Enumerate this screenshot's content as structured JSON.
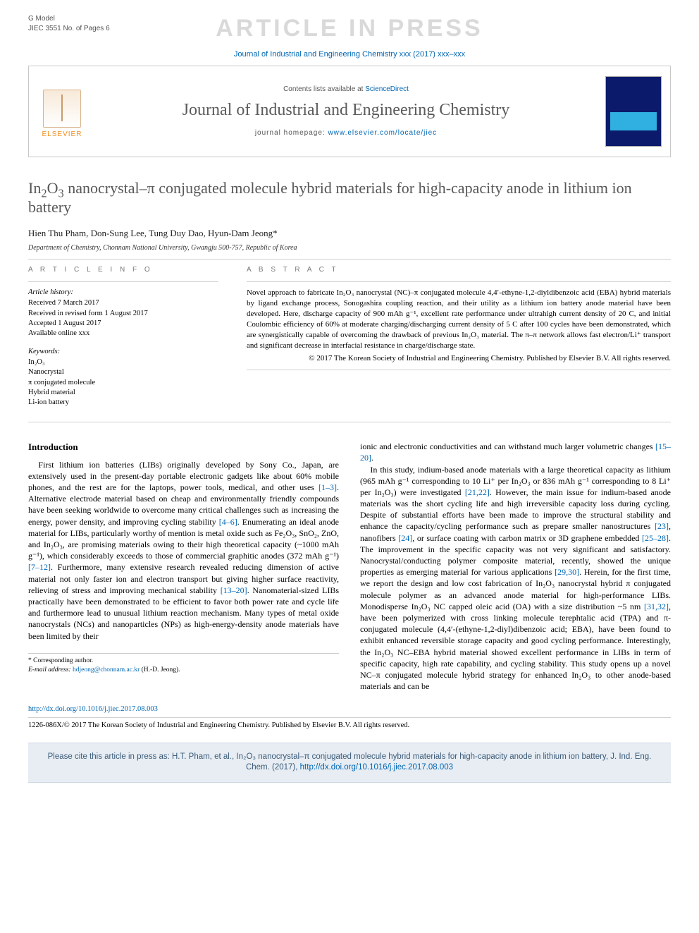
{
  "gmodel": {
    "l1": "G Model",
    "l2": "JIEC 3551 No. of Pages 6"
  },
  "watermark": "ARTICLE IN PRESS",
  "topline": {
    "text": "Journal of Industrial and Engineering Chemistry xxx (2017) xxx–xxx"
  },
  "header": {
    "contents_line_pre": "Contents lists available at ",
    "contents_link": "ScienceDirect",
    "journal_name": "Journal of Industrial and Engineering Chemistry",
    "homepage_pre": "journal homepage: ",
    "homepage_link": "www.elsevier.com/locate/jiec",
    "elsevier_label": "ELSEVIER"
  },
  "title_html": "In<sub>2</sub>O<sub>3</sub> nanocrystal–π conjugated molecule hybrid materials for high-capacity anode in lithium ion battery",
  "authors": "Hien Thu Pham, Don-Sung Lee, Tung Duy Dao, Hyun-Dam Jeong*",
  "affiliation": "Department of Chemistry, Chonnam National University, Gwangju 500-757, Republic of Korea",
  "article_info": {
    "heading": "A R T I C L E  I N F O",
    "history_label": "Article history:",
    "history": [
      "Received 7 March 2017",
      "Received in revised form 1 August 2017",
      "Accepted 1 August 2017",
      "Available online xxx"
    ],
    "keywords_label": "Keywords:",
    "keywords": [
      "In₂O₃",
      "Nanocrystal",
      "π conjugated molecule",
      "Hybrid material",
      "Li-ion battery"
    ]
  },
  "abstract": {
    "heading": "A B S T R A C T",
    "text": "Novel approach to fabricate In₂O₃ nanocrystal (NC)–π conjugated molecule 4,4′-ethyne-1,2-diyldibenzoic acid (EBA) hybrid materials by ligand exchange process, Sonogashira coupling reaction, and their utility as a lithium ion battery anode material have been developed. Here, discharge capacity of 900 mAh g⁻¹, excellent rate performance under ultrahigh current density of 20 C, and initial Coulombic efficiency of 60% at moderate charging/discharging current density of 5 C after 100 cycles have been demonstrated, which are synergistically capable of overcoming the drawback of previous In₂O₃ material. The π–π network allows fast electron/Li⁺ transport and significant decrease in interfacial resistance in charge/discharge state.",
    "copyright": "© 2017 The Korean Society of Industrial and Engineering Chemistry. Published by Elsevier B.V. All rights reserved."
  },
  "body": {
    "left": {
      "heading": "Introduction",
      "p1_a": "First lithium ion batteries (LIBs) originally developed by Sony Co., Japan, are extensively used in the present-day portable electronic gadgets like about 60% mobile phones, and the rest are for the laptops, power tools, medical, and other uses ",
      "r1": "[1–3]",
      "p1_b": ". Alternative electrode material based on cheap and environmentally friendly compounds have been seeking worldwide to overcome many critical challenges such as increasing the energy, power density, and improving cycling stability ",
      "r2": "[4–6]",
      "p1_c": ". Enumerating an ideal anode material for LIBs, particularly worthy of mention is metal oxide such as Fe₂O₃, SnO₂, ZnO, and In₂O₃, are promising materials owing to their high theoretical capacity (~1000 mAh g⁻¹), which considerably exceeds to those of commercial graphitic anodes (372 mAh g⁻¹) ",
      "r3": "[7–12]",
      "p1_d": ". Furthermore, many extensive research revealed reducing dimension of active material not only faster ion and electron transport but giving higher surface reactivity, relieving of stress and improving mechanical stability ",
      "r4": "[13–20]",
      "p1_e": ". Nanomaterial-sized LIBs practically have been demonstrated to be efficient to favor both power rate and cycle life and furthermore lead to unusual lithium reaction mechanism. Many types of metal oxide nanocrystals (NCs) and nanoparticles (NPs) as high-energy-density anode materials have been limited by their"
    },
    "right": {
      "p1_a": "ionic and electronic conductivities and can withstand much larger volumetric changes ",
      "r1": "[15–20]",
      "p1_b": ".",
      "p2_a": "In this study, indium-based anode materials with a large theoretical capacity as lithium (965 mAh g⁻¹ corresponding to 10 Li⁺ per In₂O₃ or 836 mAh g⁻¹ corresponding to 8 Li⁺ per In₂O₃) were investigated ",
      "r2": "[21,22]",
      "p2_b": ". However, the main issue for indium-based anode materials was the short cycling life and high irreversible capacity loss during cycling. Despite of substantial efforts have been made to improve the structural stability and enhance the capacity/cycling performance such as prepare smaller nanostructures ",
      "r3": "[23]",
      "p2_c": ", nanofibers ",
      "r4": "[24]",
      "p2_d": ", or surface coating with carbon matrix or 3D graphene embedded ",
      "r5": "[25–28]",
      "p2_e": ". The improvement in the specific capacity was not very significant and satisfactory. Nanocrystal/conducting polymer composite material, recently, showed the unique properties as emerging material for various applications ",
      "r6": "[29,30]",
      "p2_f": ". Herein, for the first time, we report the design and low cost fabrication of In₂O₃ nanocrystal hybrid π conjugated molecule polymer as an advanced anode material for high-performance LIBs. Monodisperse In₂O₃ NC capped oleic acid (OA) with a size distribution ~5 nm ",
      "r7": "[31,32]",
      "p2_g": ", have been polymerized with cross linking molecule terephtalic acid (TPA) and π-conjugated molecule (4,4′-(ethyne-1,2-diyl)dibenzoic acid; EBA), have been found to exhibit enhanced reversible storage capacity and good cycling performance. Interestingly, the In₂O₃ NC–EBA hybrid material showed excellent performance in LIBs in term of specific capacity, high rate capability, and cycling stability. This study opens up a novel NC–π conjugated molecule hybrid strategy for enhanced In₂O₃ to other anode-based materials and can be"
    }
  },
  "corr": {
    "label": "* Corresponding author.",
    "email_label": "E-mail address: ",
    "email": "hdjeong@chonnam.ac.kr",
    "name": " (H.-D. Jeong)."
  },
  "footer": {
    "doi": "http://dx.doi.org/10.1016/j.jiec.2017.08.003",
    "issn_line": "1226-086X/© 2017 The Korean Society of Industrial and Engineering Chemistry. Published by Elsevier B.V. All rights reserved."
  },
  "citebox": {
    "text_a": "Please cite this article in press as: H.T. Pham, et al., In₂O₃ nanocrystal–π conjugated molecule hybrid materials for high-capacity anode in lithium ion battery, J. Ind. Eng. Chem. (2017), ",
    "doi": "http://dx.doi.org/10.1016/j.jiec.2017.08.003"
  },
  "colors": {
    "link": "#0066b3",
    "watermark": "#d9d9d9",
    "title_gray": "#575757",
    "citebox_bg": "#e7edf3",
    "elsevier_orange": "#f28c1a"
  }
}
